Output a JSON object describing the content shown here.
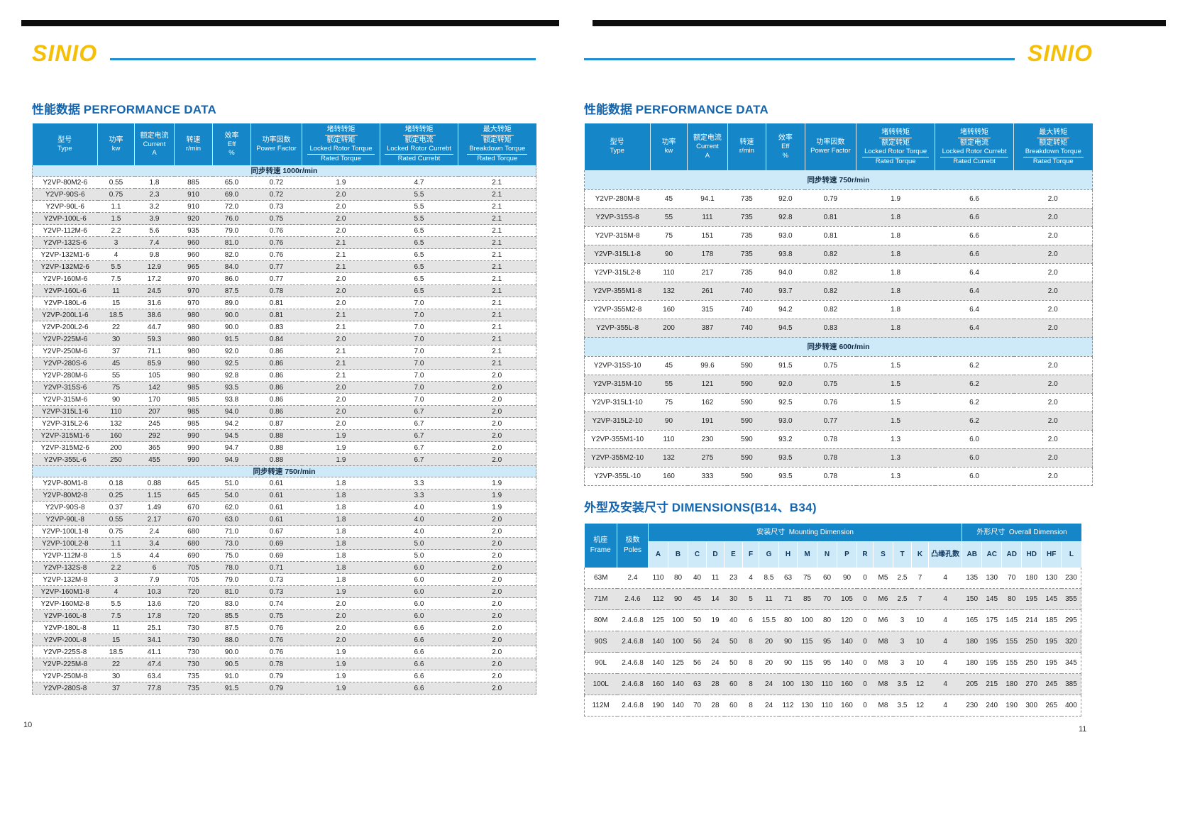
{
  "brand": {
    "logo": "SINIO",
    "accent_blue": "#1E8FD2",
    "logo_yellow": "#F5BE07",
    "header_blue": "#1587C8",
    "band_blue": "#CEE9F8",
    "alt_row_gray": "#E4E4E4"
  },
  "perf_columns": [
    {
      "zh": "型号",
      "en": "Type"
    },
    {
      "zh": "功率",
      "en": "kw"
    },
    {
      "zh": "额定电流",
      "en": "Current",
      "en2": "A"
    },
    {
      "zh": "转速",
      "en": "r/min"
    },
    {
      "zh": "效率",
      "en": "Eff",
      "en2": "%"
    },
    {
      "zh": "功率因数",
      "en": "Power Factor"
    },
    {
      "zh_top": "堵转转矩",
      "zh_bottom": "额定转矩",
      "en_top": "Locked Rotor Torque",
      "en_bottom": "Rated Torque"
    },
    {
      "zh_top": "堵转转矩",
      "zh_bottom": "额定电流",
      "en_top": "Locked Rotor Currebt",
      "en_bottom": "Rated Currebt"
    },
    {
      "zh_top": "最大转矩",
      "zh_bottom": "额定转矩",
      "en_top": "Breakdown Torque",
      "en_bottom": "Rated Torque"
    }
  ],
  "page_left": {
    "page_number": "10",
    "title_zh": "性能数据",
    "title_en": "PERFORMANCE DATA",
    "sections": [
      {
        "label": "同步转速 1000r/min",
        "rows": [
          [
            "Y2VP-80M2-6",
            "0.55",
            "1.8",
            "885",
            "65.0",
            "0.72",
            "1.9",
            "4.7",
            "2.1"
          ],
          [
            "Y2VP-90S-6",
            "0.75",
            "2.3",
            "910",
            "69.0",
            "0.72",
            "2.0",
            "5.5",
            "2.1"
          ],
          [
            "Y2VP-90L-6",
            "1.1",
            "3.2",
            "910",
            "72.0",
            "0.73",
            "2.0",
            "5.5",
            "2.1"
          ],
          [
            "Y2VP-100L-6",
            "1.5",
            "3.9",
            "920",
            "76.0",
            "0.75",
            "2.0",
            "5.5",
            "2.1"
          ],
          [
            "Y2VP-112M-6",
            "2.2",
            "5.6",
            "935",
            "79.0",
            "0.76",
            "2.0",
            "6.5",
            "2.1"
          ],
          [
            "Y2VP-132S-6",
            "3",
            "7.4",
            "960",
            "81.0",
            "0.76",
            "2.1",
            "6.5",
            "2.1"
          ],
          [
            "Y2VP-132M1-6",
            "4",
            "9.8",
            "960",
            "82.0",
            "0.76",
            "2.1",
            "6.5",
            "2.1"
          ],
          [
            "Y2VP-132M2-6",
            "5.5",
            "12.9",
            "965",
            "84.0",
            "0.77",
            "2.1",
            "6.5",
            "2.1"
          ],
          [
            "Y2VP-160M-6",
            "7.5",
            "17.2",
            "970",
            "86.0",
            "0.77",
            "2.0",
            "6.5",
            "2.1"
          ],
          [
            "Y2VP-160L-6",
            "11",
            "24.5",
            "970",
            "87.5",
            "0.78",
            "2.0",
            "6.5",
            "2.1"
          ],
          [
            "Y2VP-180L-6",
            "15",
            "31.6",
            "970",
            "89.0",
            "0.81",
            "2.0",
            "7.0",
            "2.1"
          ],
          [
            "Y2VP-200L1-6",
            "18.5",
            "38.6",
            "980",
            "90.0",
            "0.81",
            "2.1",
            "7.0",
            "2.1"
          ],
          [
            "Y2VP-200L2-6",
            "22",
            "44.7",
            "980",
            "90.0",
            "0.83",
            "2.1",
            "7.0",
            "2.1"
          ],
          [
            "Y2VP-225M-6",
            "30",
            "59.3",
            "980",
            "91.5",
            "0.84",
            "2.0",
            "7.0",
            "2.1"
          ],
          [
            "Y2VP-250M-6",
            "37",
            "71.1",
            "980",
            "92.0",
            "0.86",
            "2.1",
            "7.0",
            "2.1"
          ],
          [
            "Y2VP-280S-6",
            "45",
            "85.9",
            "980",
            "92.5",
            "0.86",
            "2.1",
            "7.0",
            "2.1"
          ],
          [
            "Y2VP-280M-6",
            "55",
            "105",
            "980",
            "92.8",
            "0.86",
            "2.1",
            "7.0",
            "2.0"
          ],
          [
            "Y2VP-315S-6",
            "75",
            "142",
            "985",
            "93.5",
            "0.86",
            "2.0",
            "7.0",
            "2.0"
          ],
          [
            "Y2VP-315M-6",
            "90",
            "170",
            "985",
            "93.8",
            "0.86",
            "2.0",
            "7.0",
            "2.0"
          ],
          [
            "Y2VP-315L1-6",
            "110",
            "207",
            "985",
            "94.0",
            "0.86",
            "2.0",
            "6.7",
            "2.0"
          ],
          [
            "Y2VP-315L2-6",
            "132",
            "245",
            "985",
            "94.2",
            "0.87",
            "2.0",
            "6.7",
            "2.0"
          ],
          [
            "Y2VP-315M1-6",
            "160",
            "292",
            "990",
            "94.5",
            "0.88",
            "1.9",
            "6.7",
            "2.0"
          ],
          [
            "Y2VP-315M2-6",
            "200",
            "365",
            "990",
            "94.7",
            "0.88",
            "1.9",
            "6.7",
            "2.0"
          ],
          [
            "Y2VP-355L-6",
            "250",
            "455",
            "990",
            "94.9",
            "0.88",
            "1.9",
            "6.7",
            "2.0"
          ]
        ]
      },
      {
        "label": "同步转速 750r/min",
        "rows": [
          [
            "Y2VP-80M1-8",
            "0.18",
            "0.88",
            "645",
            "51.0",
            "0.61",
            "1.8",
            "3.3",
            "1.9"
          ],
          [
            "Y2VP-80M2-8",
            "0.25",
            "1.15",
            "645",
            "54.0",
            "0.61",
            "1.8",
            "3.3",
            "1.9"
          ],
          [
            "Y2VP-90S-8",
            "0.37",
            "1.49",
            "670",
            "62.0",
            "0.61",
            "1.8",
            "4.0",
            "1.9"
          ],
          [
            "Y2VP-90L-8",
            "0.55",
            "2.17",
            "670",
            "63.0",
            "0.61",
            "1.8",
            "4.0",
            "2.0"
          ],
          [
            "Y2VP-100L1-8",
            "0.75",
            "2.4",
            "680",
            "71.0",
            "0.67",
            "1.8",
            "4.0",
            "2.0"
          ],
          [
            "Y2VP-100L2-8",
            "1.1",
            "3.4",
            "680",
            "73.0",
            "0.69",
            "1.8",
            "5.0",
            "2.0"
          ],
          [
            "Y2VP-112M-8",
            "1.5",
            "4.4",
            "690",
            "75.0",
            "0.69",
            "1.8",
            "5.0",
            "2.0"
          ],
          [
            "Y2VP-132S-8",
            "2.2",
            "6",
            "705",
            "78.0",
            "0.71",
            "1.8",
            "6.0",
            "2.0"
          ],
          [
            "Y2VP-132M-8",
            "3",
            "7.9",
            "705",
            "79.0",
            "0.73",
            "1.8",
            "6.0",
            "2.0"
          ],
          [
            "Y2VP-160M1-8",
            "4",
            "10.3",
            "720",
            "81.0",
            "0.73",
            "1.9",
            "6.0",
            "2.0"
          ],
          [
            "Y2VP-160M2-8",
            "5.5",
            "13.6",
            "720",
            "83.0",
            "0.74",
            "2.0",
            "6.0",
            "2.0"
          ],
          [
            "Y2VP-160L-8",
            "7.5",
            "17.8",
            "720",
            "85.5",
            "0.75",
            "2.0",
            "6.0",
            "2.0"
          ],
          [
            "Y2VP-180L-8",
            "11",
            "25.1",
            "730",
            "87.5",
            "0.76",
            "2.0",
            "6.6",
            "2.0"
          ],
          [
            "Y2VP-200L-8",
            "15",
            "34.1",
            "730",
            "88.0",
            "0.76",
            "2.0",
            "6.6",
            "2.0"
          ],
          [
            "Y2VP-225S-8",
            "18.5",
            "41.1",
            "730",
            "90.0",
            "0.76",
            "1.9",
            "6.6",
            "2.0"
          ],
          [
            "Y2VP-225M-8",
            "22",
            "47.4",
            "730",
            "90.5",
            "0.78",
            "1.9",
            "6.6",
            "2.0"
          ],
          [
            "Y2VP-250M-8",
            "30",
            "63.4",
            "735",
            "91.0",
            "0.79",
            "1.9",
            "6.6",
            "2.0"
          ],
          [
            "Y2VP-280S-8",
            "37",
            "77.8",
            "735",
            "91.5",
            "0.79",
            "1.9",
            "6.6",
            "2.0"
          ]
        ]
      }
    ]
  },
  "page_right": {
    "page_number": "11",
    "title_zh": "性能数据",
    "title_en": "PERFORMANCE DATA",
    "sections": [
      {
        "label": "同步转速 750r/min",
        "rows": [
          [
            "Y2VP-280M-8",
            "45",
            "94.1",
            "735",
            "92.0",
            "0.79",
            "1.9",
            "6.6",
            "2.0"
          ],
          [
            "Y2VP-315S-8",
            "55",
            "111",
            "735",
            "92.8",
            "0.81",
            "1.8",
            "6.6",
            "2.0"
          ],
          [
            "Y2VP-315M-8",
            "75",
            "151",
            "735",
            "93.0",
            "0.81",
            "1.8",
            "6.6",
            "2.0"
          ],
          [
            "Y2VP-315L1-8",
            "90",
            "178",
            "735",
            "93.8",
            "0.82",
            "1.8",
            "6.6",
            "2.0"
          ],
          [
            "Y2VP-315L2-8",
            "110",
            "217",
            "735",
            "94.0",
            "0.82",
            "1.8",
            "6.4",
            "2.0"
          ],
          [
            "Y2VP-355M1-8",
            "132",
            "261",
            "740",
            "93.7",
            "0.82",
            "1.8",
            "6.4",
            "2.0"
          ],
          [
            "Y2VP-355M2-8",
            "160",
            "315",
            "740",
            "94.2",
            "0.82",
            "1.8",
            "6.4",
            "2.0"
          ],
          [
            "Y2VP-355L-8",
            "200",
            "387",
            "740",
            "94.5",
            "0.83",
            "1.8",
            "6.4",
            "2.0"
          ]
        ]
      },
      {
        "label": "同步转速 600r/min",
        "rows": [
          [
            "Y2VP-315S-10",
            "45",
            "99.6",
            "590",
            "91.5",
            "0.75",
            "1.5",
            "6.2",
            "2.0"
          ],
          [
            "Y2VP-315M-10",
            "55",
            "121",
            "590",
            "92.0",
            "0.75",
            "1.5",
            "6.2",
            "2.0"
          ],
          [
            "Y2VP-315L1-10",
            "75",
            "162",
            "590",
            "92.5",
            "0.76",
            "1.5",
            "6.2",
            "2.0"
          ],
          [
            "Y2VP-315L2-10",
            "90",
            "191",
            "590",
            "93.0",
            "0.77",
            "1.5",
            "6.2",
            "2.0"
          ],
          [
            "Y2VP-355M1-10",
            "110",
            "230",
            "590",
            "93.2",
            "0.78",
            "1.3",
            "6.0",
            "2.0"
          ],
          [
            "Y2VP-355M2-10",
            "132",
            "275",
            "590",
            "93.5",
            "0.78",
            "1.3",
            "6.0",
            "2.0"
          ],
          [
            "Y2VP-355L-10",
            "160",
            "333",
            "590",
            "93.5",
            "0.78",
            "1.3",
            "6.0",
            "2.0"
          ]
        ]
      }
    ],
    "dim_title_zh": "外型及安装尺寸",
    "dim_title_en": "DIMENSIONS(B14、B34)",
    "dim_table": {
      "frame": {
        "zh": "机座",
        "en": "Frame"
      },
      "poles": {
        "zh": "极数",
        "en": "Poles"
      },
      "mounting_group": {
        "zh": "安装尺寸",
        "en": "Mounting Dimension"
      },
      "overall_group": {
        "zh": "外形尺寸",
        "en": "Overall Dimension"
      },
      "mounting_cols": [
        "A",
        "B",
        "C",
        "D",
        "E",
        "F",
        "G",
        "H",
        "M",
        "N",
        "P",
        "R",
        "S",
        "T",
        "K",
        "凸缘孔数"
      ],
      "overall_cols": [
        "AB",
        "AC",
        "AD",
        "HD",
        "HF",
        "L"
      ],
      "rows": [
        [
          "63M",
          "2.4",
          "110",
          "80",
          "40",
          "11",
          "23",
          "4",
          "8.5",
          "63",
          "75",
          "60",
          "90",
          "0",
          "M5",
          "2.5",
          "7",
          "4",
          "135",
          "130",
          "70",
          "180",
          "130",
          "230"
        ],
        [
          "71M",
          "2.4.6",
          "112",
          "90",
          "45",
          "14",
          "30",
          "5",
          "11",
          "71",
          "85",
          "70",
          "105",
          "0",
          "M6",
          "2.5",
          "7",
          "4",
          "150",
          "145",
          "80",
          "195",
          "145",
          "355"
        ],
        [
          "80M",
          "2.4.6.8",
          "125",
          "100",
          "50",
          "19",
          "40",
          "6",
          "15.5",
          "80",
          "100",
          "80",
          "120",
          "0",
          "M6",
          "3",
          "10",
          "4",
          "165",
          "175",
          "145",
          "214",
          "185",
          "295"
        ],
        [
          "90S",
          "2.4.6.8",
          "140",
          "100",
          "56",
          "24",
          "50",
          "8",
          "20",
          "90",
          "115",
          "95",
          "140",
          "0",
          "M8",
          "3",
          "10",
          "4",
          "180",
          "195",
          "155",
          "250",
          "195",
          "320"
        ],
        [
          "90L",
          "2.4.6.8",
          "140",
          "125",
          "56",
          "24",
          "50",
          "8",
          "20",
          "90",
          "115",
          "95",
          "140",
          "0",
          "M8",
          "3",
          "10",
          "4",
          "180",
          "195",
          "155",
          "250",
          "195",
          "345"
        ],
        [
          "100L",
          "2.4.6.8",
          "160",
          "140",
          "63",
          "28",
          "60",
          "8",
          "24",
          "100",
          "130",
          "110",
          "160",
          "0",
          "M8",
          "3.5",
          "12",
          "4",
          "205",
          "215",
          "180",
          "270",
          "245",
          "385"
        ],
        [
          "112M",
          "2.4.6.8",
          "190",
          "140",
          "70",
          "28",
          "60",
          "8",
          "24",
          "112",
          "130",
          "110",
          "160",
          "0",
          "M8",
          "3.5",
          "12",
          "4",
          "230",
          "240",
          "190",
          "300",
          "265",
          "400"
        ]
      ]
    }
  }
}
